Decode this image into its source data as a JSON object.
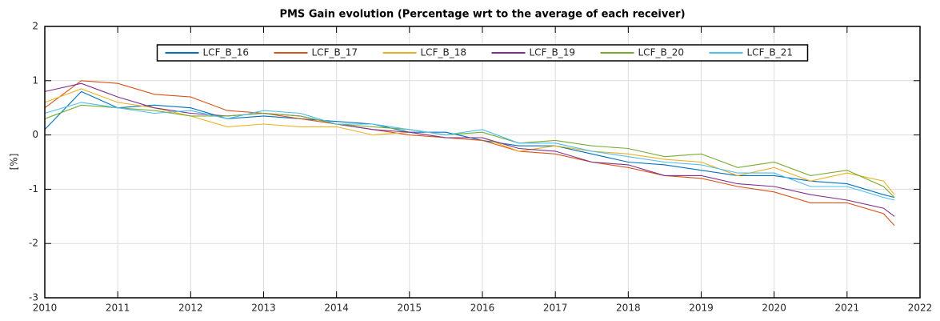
{
  "chart_data": {
    "type": "line",
    "title": "PMS Gain evolution (Percentage wrt to the average of each receiver)",
    "y_label": "[%]",
    "x": [
      2010.0,
      2010.5,
      2011.0,
      2011.5,
      2012.0,
      2012.5,
      2013.0,
      2013.5,
      2014.0,
      2014.5,
      2015.0,
      2015.5,
      2016.0,
      2016.5,
      2017.0,
      2017.5,
      2018.0,
      2018.5,
      2019.0,
      2019.5,
      2020.0,
      2020.5,
      2021.0,
      2021.5,
      2021.65
    ],
    "series": [
      {
        "name": "LCF_B_16",
        "color": "#0072bd",
        "values": [
          0.1,
          0.8,
          0.5,
          0.55,
          0.5,
          0.3,
          0.35,
          0.3,
          0.25,
          0.2,
          0.05,
          0.05,
          -0.1,
          -0.2,
          -0.2,
          -0.35,
          -0.5,
          -0.55,
          -0.65,
          -0.75,
          -0.75,
          -0.85,
          -0.9,
          -1.1,
          -1.15
        ]
      },
      {
        "name": "LCF_B_17",
        "color": "#d95319",
        "values": [
          0.5,
          1.0,
          0.95,
          0.75,
          0.7,
          0.45,
          0.4,
          0.3,
          0.2,
          0.1,
          0.0,
          -0.05,
          -0.1,
          -0.3,
          -0.35,
          -0.5,
          -0.6,
          -0.75,
          -0.8,
          -0.95,
          -1.05,
          -1.25,
          -1.25,
          -1.45,
          -1.67
        ]
      },
      {
        "name": "LCF_B_18",
        "color": "#edb120",
        "values": [
          0.6,
          0.85,
          0.6,
          0.5,
          0.35,
          0.15,
          0.2,
          0.15,
          0.15,
          0.0,
          0.05,
          -0.05,
          -0.05,
          -0.3,
          -0.2,
          -0.3,
          -0.35,
          -0.45,
          -0.5,
          -0.75,
          -0.6,
          -0.85,
          -0.7,
          -0.85,
          -1.1
        ]
      },
      {
        "name": "LCF_B_19",
        "color": "#7e2f8e",
        "values": [
          0.8,
          0.95,
          0.7,
          0.5,
          0.4,
          0.35,
          0.4,
          0.35,
          0.2,
          0.1,
          0.05,
          -0.05,
          -0.05,
          -0.25,
          -0.3,
          -0.5,
          -0.55,
          -0.75,
          -0.75,
          -0.9,
          -0.95,
          -1.1,
          -1.2,
          -1.35,
          -1.5
        ]
      },
      {
        "name": "LCF_B_20",
        "color": "#77ac30",
        "values": [
          0.3,
          0.55,
          0.5,
          0.45,
          0.35,
          0.35,
          0.4,
          0.35,
          0.2,
          0.15,
          0.1,
          0.0,
          0.05,
          -0.15,
          -0.1,
          -0.2,
          -0.25,
          -0.4,
          -0.35,
          -0.6,
          -0.5,
          -0.75,
          -0.65,
          -0.95,
          -1.15
        ]
      },
      {
        "name": "LCF_B_21",
        "color": "#4dbeee",
        "values": [
          0.4,
          0.6,
          0.5,
          0.4,
          0.45,
          0.3,
          0.45,
          0.4,
          0.2,
          0.2,
          0.1,
          0.0,
          0.1,
          -0.15,
          -0.15,
          -0.3,
          -0.4,
          -0.5,
          -0.55,
          -0.7,
          -0.7,
          -0.95,
          -0.95,
          -1.15,
          -1.2
        ]
      }
    ],
    "xlim": [
      2010,
      2022
    ],
    "xticks": [
      2010,
      2011,
      2012,
      2013,
      2014,
      2015,
      2016,
      2017,
      2018,
      2019,
      2020,
      2021,
      2022
    ],
    "ylim": [
      -3,
      2
    ],
    "yticks": [
      -3,
      -2,
      -1,
      0,
      1,
      2
    ],
    "grid": true,
    "legend_position": "north"
  }
}
